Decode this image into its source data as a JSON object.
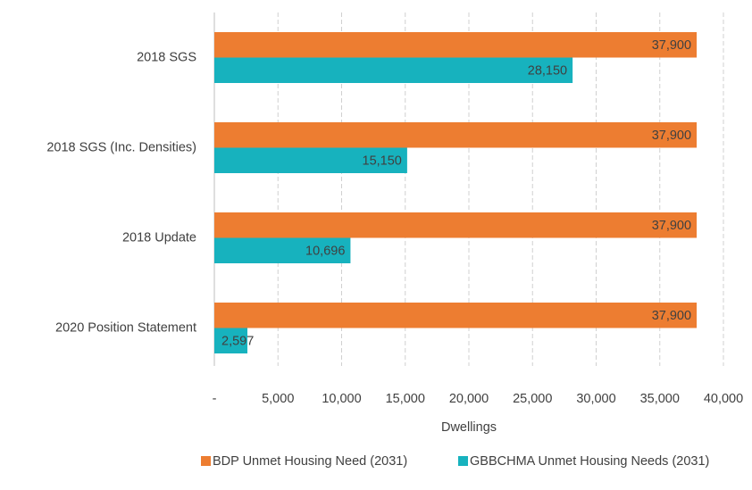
{
  "chart_data": {
    "type": "bar",
    "orientation": "horizontal",
    "categories": [
      "2018 SGS",
      "2018 SGS (Inc. Densities)",
      "2018 Update",
      "2020 Position Statement"
    ],
    "series": [
      {
        "name": "BDP Unmet Housing Need (2031)",
        "color": "#ED7D31",
        "values": [
          37900,
          37900,
          37900,
          37900
        ],
        "value_labels": [
          "37,900",
          "37,900",
          "37,900",
          "37,900"
        ]
      },
      {
        "name": "GBBCHMA Unmet Housing Needs (2031)",
        "color": "#17B2BE",
        "values": [
          28150,
          15150,
          10696,
          2597
        ],
        "value_labels": [
          "28,150",
          "15,150",
          "10,696",
          "2,597"
        ]
      }
    ],
    "xlabel": "Dwellings",
    "xlim": [
      0,
      40000
    ],
    "xticks": [
      {
        "value": 0,
        "label": "-"
      },
      {
        "value": 5000,
        "label": "5,000"
      },
      {
        "value": 10000,
        "label": "10,000"
      },
      {
        "value": 15000,
        "label": "15,000"
      },
      {
        "value": 20000,
        "label": "20,000"
      },
      {
        "value": 25000,
        "label": "25,000"
      },
      {
        "value": 30000,
        "label": "30,000"
      },
      {
        "value": 35000,
        "label": "35,000"
      },
      {
        "value": 40000,
        "label": "40,000"
      }
    ],
    "grid": true,
    "legend": "bottom"
  }
}
